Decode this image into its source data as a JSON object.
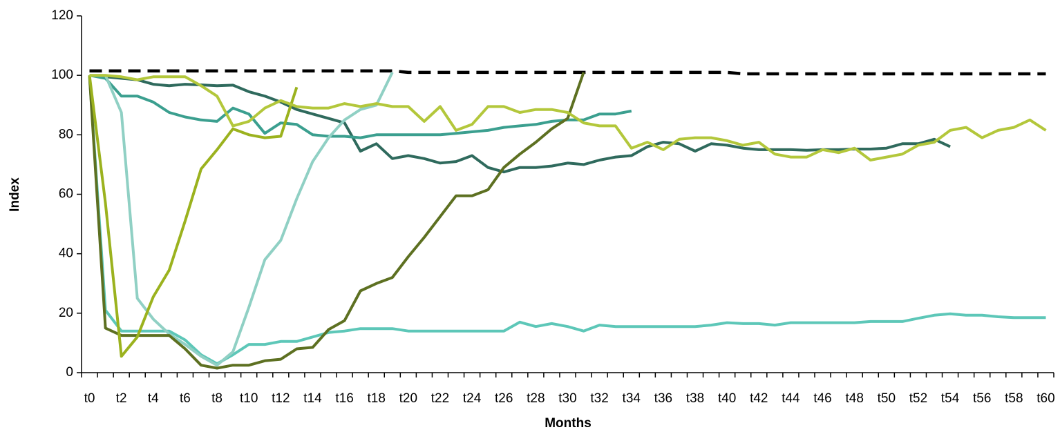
{
  "chart_data": {
    "type": "line",
    "x_label": "Months",
    "y_label": "Index",
    "categories": [
      "t0",
      null,
      "t2",
      null,
      "t4",
      null,
      "t6",
      null,
      "t8",
      null,
      "t10",
      null,
      "t12",
      null,
      "t14",
      null,
      "t16",
      null,
      "t18",
      null,
      "t20",
      null,
      "t22",
      null,
      "t24",
      null,
      "t26",
      null,
      "t28",
      null,
      "t30",
      null,
      "t32",
      null,
      "t34",
      null,
      "t36",
      null,
      "t38",
      null,
      "t40",
      null,
      "t42",
      null,
      "t44",
      null,
      "t46",
      null,
      "t48",
      null,
      "t50",
      null,
      "t52",
      null,
      "t54",
      null,
      "t56",
      null,
      "t58",
      null,
      "t60"
    ],
    "ylim": [
      0,
      120
    ],
    "yticks": [
      0,
      20,
      40,
      60,
      80,
      100,
      120
    ],
    "grid": false,
    "series": [
      {
        "color": "#000000",
        "dashed": true,
        "values": [
          101.5,
          101.5,
          101.5,
          101.5,
          101.5,
          101.5,
          101.5,
          101.5,
          101.5,
          101.5,
          101.5,
          101.5,
          101.5,
          101.5,
          101.5,
          101.5,
          101.5,
          101.5,
          101.5,
          101.5,
          101,
          101,
          101,
          101,
          101,
          101,
          101,
          101,
          101,
          101,
          101,
          101,
          101,
          101,
          101,
          101,
          101,
          101,
          101,
          101,
          101,
          100.5,
          100.5,
          100.5,
          100.5,
          100.5,
          100.5,
          100.5,
          100.5,
          100.5,
          100.5,
          100.5,
          100.5,
          100.5,
          100.5,
          100.5,
          100.5,
          100.5,
          100.5,
          100.5,
          100.5
        ]
      },
      {
        "color": "#2f6a5d",
        "values": [
          100,
          99.5,
          99,
          98.5,
          97,
          96.5,
          97,
          96.8,
          96.5,
          96.7,
          94.5,
          93,
          91,
          88.5,
          87,
          85.5,
          84,
          74.5,
          77,
          72,
          73,
          72,
          70.5,
          71,
          73,
          69,
          67.5,
          69,
          69,
          69.5,
          70.5,
          70,
          71.5,
          72.5,
          73,
          76,
          77.5,
          77,
          74.5,
          77,
          76.5,
          75.5,
          75,
          75,
          75,
          74.8,
          75,
          75,
          75.2,
          75.2,
          75.5,
          77,
          77,
          78.5,
          76,
          null,
          null,
          null,
          null,
          null,
          null
        ]
      },
      {
        "color": "#3b9f8f",
        "values": [
          100,
          99,
          93,
          93,
          91,
          87.5,
          86,
          85,
          84.5,
          89,
          87,
          80.5,
          84,
          83.5,
          80,
          79.5,
          79.5,
          79,
          80,
          80,
          80,
          80,
          80,
          80.5,
          81,
          81.5,
          82.5,
          83,
          83.5,
          84.5,
          85,
          85,
          87,
          87,
          88,
          null,
          null,
          null,
          null,
          null,
          null,
          null,
          null,
          null,
          null,
          null,
          null,
          null,
          null,
          null,
          null,
          null,
          null,
          null,
          null,
          null,
          null,
          null,
          null,
          null,
          null
        ]
      },
      {
        "color": "#5dc7b8",
        "values": [
          100,
          21,
          14,
          14,
          14,
          14,
          11,
          6,
          3,
          6,
          9.5,
          9.5,
          10.5,
          10.5,
          12,
          13.5,
          14,
          14.8,
          14.8,
          14.8,
          14,
          14,
          14,
          14,
          14,
          14,
          14,
          17,
          15.5,
          16.5,
          15.5,
          14,
          16,
          15.5,
          15.5,
          15.5,
          15.5,
          15.5,
          15.5,
          16,
          16.8,
          16.5,
          16.5,
          16,
          16.8,
          16.8,
          16.8,
          16.8,
          16.8,
          17.2,
          17.2,
          17.2,
          18.3,
          19.3,
          19.8,
          19.3,
          19.3,
          18.8,
          18.5,
          18.5,
          18.5
        ]
      },
      {
        "color": "#90d0c4",
        "values": [
          100,
          100,
          87.5,
          25,
          18,
          13,
          9.5,
          5.5,
          2.5,
          7,
          22,
          38,
          44.5,
          58.5,
          71,
          79,
          85,
          88.5,
          90,
          101,
          null,
          null,
          null,
          null,
          null,
          null,
          null,
          null,
          null,
          null,
          null,
          null,
          null,
          null,
          null,
          null,
          null,
          null,
          null,
          null,
          null,
          null,
          null,
          null,
          null,
          null,
          null,
          null,
          null,
          null,
          null,
          null,
          null,
          null,
          null,
          null,
          null,
          null,
          null,
          null,
          null
        ]
      },
      {
        "color": "#5d7021",
        "values": [
          100,
          15,
          12.5,
          12.5,
          12.5,
          12.5,
          8,
          2.5,
          1.5,
          2.5,
          2.5,
          4,
          4.5,
          8,
          8.5,
          14.5,
          17.5,
          27.5,
          30,
          32,
          39,
          45.5,
          52.5,
          59.5,
          59.5,
          61.5,
          69,
          73.5,
          77.5,
          82,
          85.5,
          101,
          null,
          null,
          null,
          null,
          null,
          null,
          null,
          null,
          null,
          null,
          null,
          null,
          null,
          null,
          null,
          null,
          null,
          null,
          null,
          null,
          null,
          null,
          null,
          null,
          null,
          null,
          null,
          null,
          null
        ]
      },
      {
        "color": "#9bb21e",
        "values": [
          100,
          57,
          5.5,
          12,
          25.5,
          34.5,
          51,
          68.5,
          75,
          82,
          80,
          79,
          79.5,
          96,
          null,
          null,
          null,
          null,
          null,
          null,
          null,
          null,
          null,
          null,
          null,
          null,
          null,
          null,
          null,
          null,
          null,
          null,
          null,
          null,
          null,
          null,
          null,
          null,
          null,
          null,
          null,
          null,
          null,
          null,
          null,
          null,
          null,
          null,
          null,
          null,
          null,
          null,
          null,
          null,
          null,
          null,
          null,
          null,
          null,
          null,
          null
        ]
      },
      {
        "color": "#b3c73b",
        "values": [
          100,
          100,
          99.5,
          98.5,
          99.5,
          99.5,
          99.5,
          96.5,
          93,
          83,
          84.5,
          89,
          91.5,
          89.5,
          89,
          89,
          90.5,
          89.5,
          90.5,
          89.5,
          89.5,
          84.5,
          89.5,
          81.5,
          83.5,
          89.5,
          89.5,
          87.5,
          88.5,
          88.5,
          87.5,
          84,
          83,
          83,
          75.5,
          77.5,
          75,
          78.5,
          79,
          79,
          78,
          76.5,
          77.5,
          73.5,
          72.5,
          72.5,
          75,
          74,
          75.5,
          71.5,
          72.5,
          73.5,
          76.5,
          77.5,
          81.5,
          82.5,
          79,
          81.5,
          82.5,
          85,
          81.5
        ]
      }
    ]
  }
}
